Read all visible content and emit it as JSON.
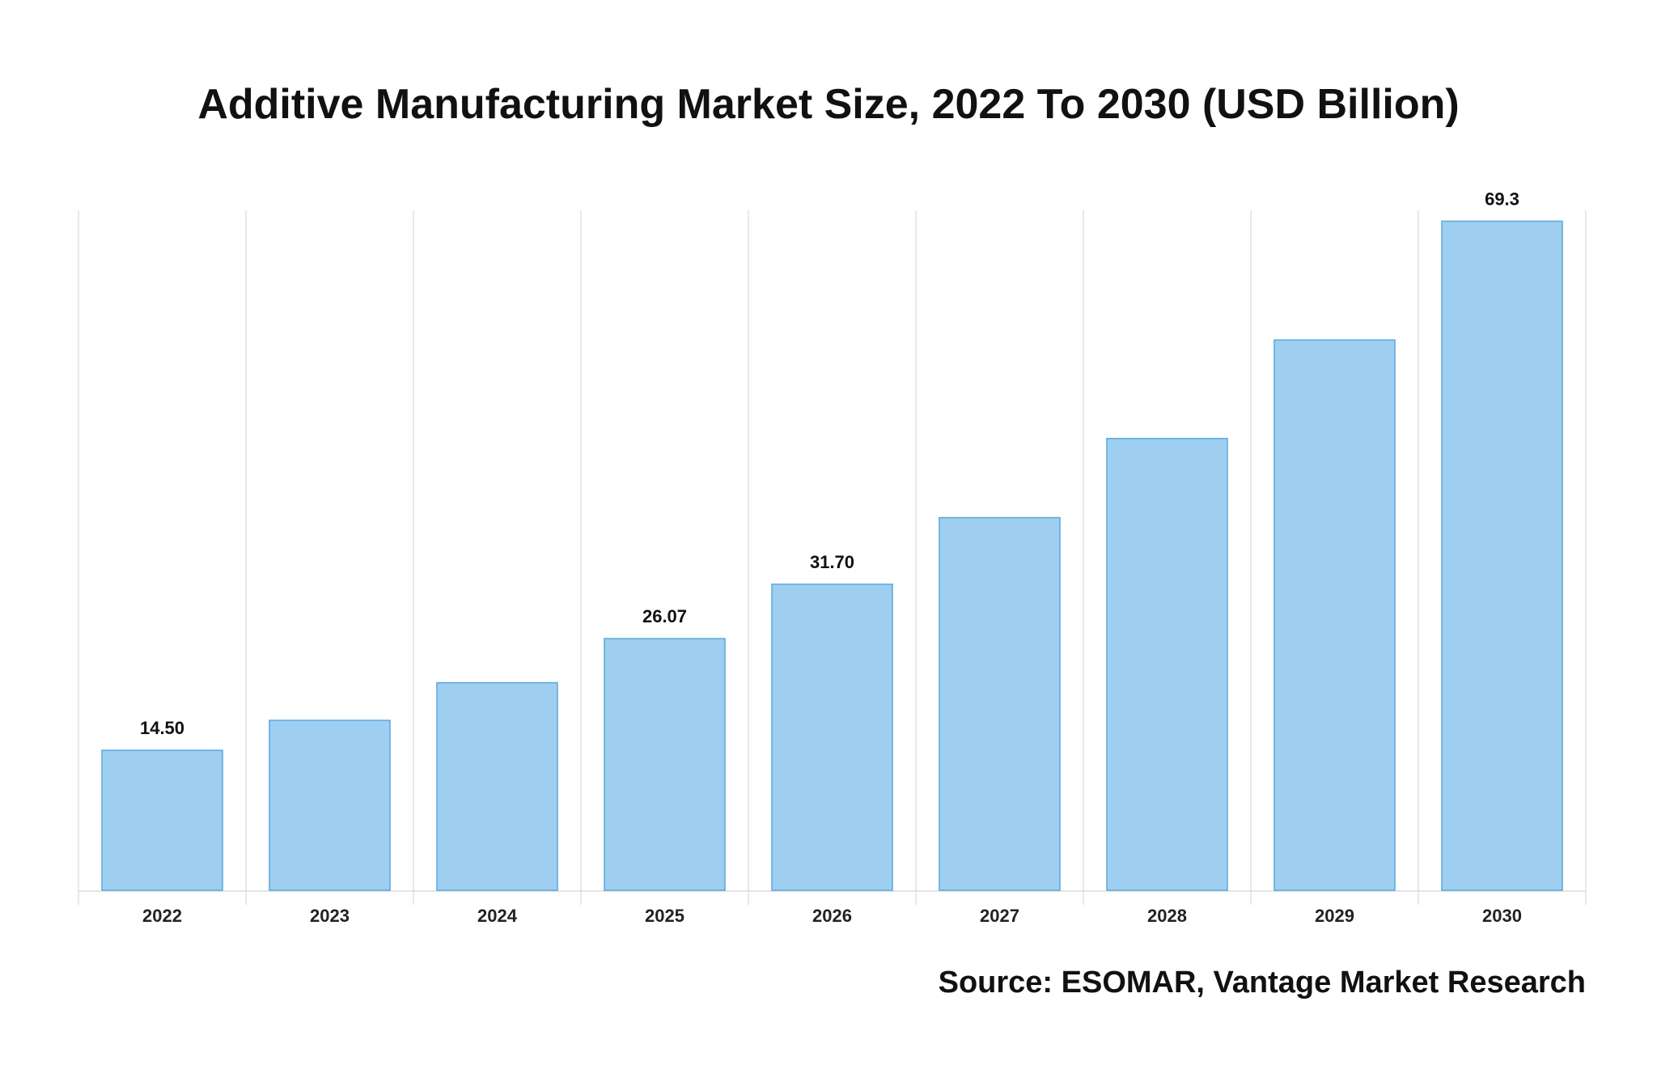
{
  "chart_data": {
    "type": "bar",
    "title": "Additive Manufacturing Market Size, 2022 To 2030 (USD Billion)",
    "categories": [
      "2022",
      "2023",
      "2024",
      "2025",
      "2026",
      "2027",
      "2028",
      "2029",
      "2030"
    ],
    "values": [
      14.5,
      17.6,
      21.5,
      26.07,
      31.7,
      38.6,
      46.8,
      57.0,
      69.3
    ],
    "data_labels": [
      "14.50",
      "",
      "",
      "26.07",
      "31.70",
      "",
      "",
      "",
      "69.3"
    ],
    "ylim": [
      0,
      70
    ],
    "bar_color": "#9ecff0",
    "bar_edge_color": "#5aa8dc",
    "grid": "vertical",
    "source": "Source: ESOMAR, Vantage Market Research"
  }
}
